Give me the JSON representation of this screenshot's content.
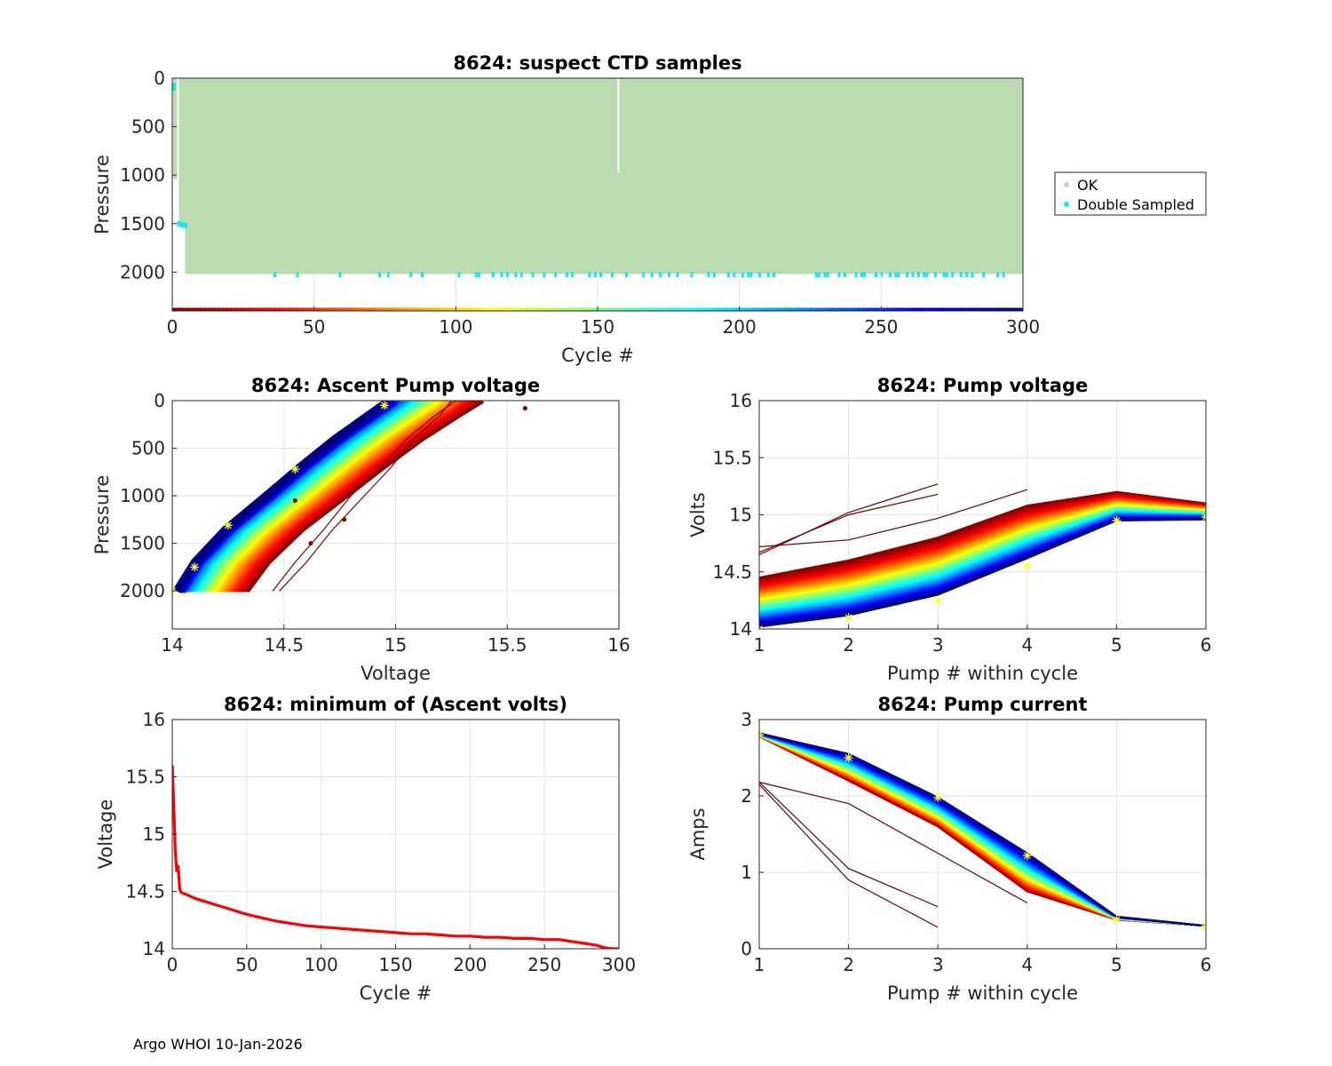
{
  "footer": "Argo WHOI 10-Jan-2026",
  "colors": {
    "ok": "#bddbb0",
    "double_sampled": "#19e6f2",
    "min_line": "#ff0000",
    "reference_marker": "#ffff33",
    "grid": "#e3e3e3",
    "axis": "#262626"
  },
  "chart_data": [
    {
      "id": "ctd",
      "type": "scatter",
      "title": "8624: suspect CTD samples",
      "xlabel": "Cycle #",
      "ylabel": "Pressure",
      "xlim": [
        0,
        300
      ],
      "ylim": [
        2400,
        0
      ],
      "xticks": [
        0,
        50,
        100,
        150,
        200,
        250,
        300
      ],
      "yticks": [
        0,
        500,
        1000,
        1500,
        2000
      ],
      "legend": {
        "position": "outside-right",
        "entries": [
          "OK",
          "Double Sampled"
        ]
      },
      "ok_region": {
        "cycle_range": [
          0,
          300
        ],
        "pressure_range": [
          0,
          2000
        ]
      },
      "early_cycles_ok": [
        {
          "cycle": 1,
          "pmax": 1050
        },
        {
          "cycle": 3,
          "pmax": 1520
        },
        {
          "cycle": 4,
          "pmax": 1520
        }
      ],
      "gap_cycle": {
        "cycle": 157,
        "pressure_range": [
          0,
          980
        ]
      },
      "double_sampled_near_surface": [
        {
          "cycle": 0,
          "pressure": 80
        },
        {
          "cycle": 0,
          "pressure": 100
        }
      ],
      "double_sampled_1500": [
        {
          "cycle": 2,
          "pressure": 1500
        },
        {
          "cycle": 3,
          "pressure": 1510
        },
        {
          "cycle": 4,
          "pressure": 1520
        }
      ],
      "double_sampled_deep_cycles": [
        36,
        44,
        59,
        73,
        76,
        84,
        88,
        101,
        107,
        108,
        113,
        116,
        118,
        121,
        123,
        127,
        131,
        135,
        139,
        141,
        147,
        149,
        151,
        155,
        160,
        166,
        169,
        172,
        175,
        178,
        183,
        189,
        191,
        196,
        198,
        201,
        203,
        204,
        207,
        210,
        212,
        227,
        228,
        230,
        231,
        235,
        237,
        241,
        243,
        244,
        248,
        250,
        253,
        255,
        256,
        259,
        261,
        263,
        265,
        266,
        269,
        272,
        273,
        275,
        278,
        280,
        282,
        286,
        291,
        293
      ],
      "double_sampled_deep_pressure": 2000,
      "cycle_colorbar_pressure": 2390
    },
    {
      "id": "ascent",
      "type": "line",
      "title": "8624: Ascent Pump voltage",
      "xlabel": "Voltage",
      "ylabel": "Pressure",
      "xlim": [
        14,
        16
      ],
      "ylim": [
        2400,
        0
      ],
      "xticks": [
        14,
        14.5,
        15,
        15.5,
        16
      ],
      "yticks": [
        0,
        500,
        1000,
        1500,
        2000
      ],
      "profile_pressures": [
        2000,
        1700,
        1350,
        1000,
        700,
        400,
        150,
        0
      ],
      "profile_voltages_late": [
        14.02,
        14.1,
        14.24,
        14.42,
        14.57,
        14.73,
        14.88,
        14.97
      ],
      "profile_offset_early": 0.42,
      "outliers": [
        {
          "voltage": 15.58,
          "pressure": 80
        },
        {
          "voltage": 14.77,
          "pressure": 1250
        },
        {
          "voltage": 14.62,
          "pressure": 1500
        },
        {
          "voltage": 14.55,
          "pressure": 1050
        }
      ],
      "reference_points": [
        {
          "voltage": 14.0,
          "pressure": 2000
        },
        {
          "voltage": 14.1,
          "pressure": 1750
        },
        {
          "voltage": 14.25,
          "pressure": 1310
        },
        {
          "voltage": 14.55,
          "pressure": 720
        },
        {
          "voltage": 14.95,
          "pressure": 50
        }
      ]
    },
    {
      "id": "pumpv",
      "type": "line",
      "title": "8624: Pump voltage",
      "xlabel": "Pump # within cycle",
      "ylabel": "Volts",
      "xlim": [
        1,
        6
      ],
      "ylim": [
        14,
        16
      ],
      "xticks": [
        1,
        2,
        3,
        4,
        5,
        6
      ],
      "yticks": [
        14,
        14.5,
        15,
        15.5,
        16
      ],
      "series_first_cycle": [
        14.45,
        14.6,
        14.8,
        15.08,
        15.2,
        15.1
      ],
      "series_last_cycle": [
        14.02,
        14.12,
        14.3,
        14.62,
        14.95,
        14.96
      ],
      "outlier_series": [
        [
          14.65,
          15.02,
          15.27
        ],
        [
          14.67,
          15.0,
          15.18
        ],
        [
          14.72,
          14.78,
          14.97,
          15.22
        ]
      ],
      "reference_points": [
        {
          "x": 1,
          "y": 14.0
        },
        {
          "x": 2,
          "y": 14.1
        },
        {
          "x": 3,
          "y": 14.25
        },
        {
          "x": 4,
          "y": 14.55
        },
        {
          "x": 5,
          "y": 14.95
        },
        {
          "x": 6,
          "y": 14.98
        }
      ]
    },
    {
      "id": "minv",
      "type": "line",
      "title": "8624: minimum of (Ascent volts)",
      "xlabel": "Cycle #",
      "ylabel": "Voltage",
      "xlim": [
        0,
        300
      ],
      "ylim": [
        14,
        16
      ],
      "xticks": [
        0,
        50,
        100,
        150,
        200,
        250,
        300
      ],
      "yticks": [
        14,
        14.5,
        15,
        15.5,
        16
      ],
      "x": [
        0,
        1,
        2,
        3,
        4,
        5,
        6,
        8,
        10,
        15,
        20,
        30,
        40,
        50,
        60,
        70,
        80,
        90,
        100,
        110,
        120,
        130,
        140,
        150,
        160,
        170,
        180,
        190,
        200,
        210,
        220,
        230,
        240,
        250,
        255,
        260,
        265,
        270,
        275,
        280,
        285,
        290,
        295,
        300
      ],
      "values": [
        15.6,
        15.25,
        14.85,
        14.68,
        14.72,
        14.52,
        14.49,
        14.48,
        14.47,
        14.44,
        14.42,
        14.38,
        14.34,
        14.3,
        14.27,
        14.24,
        14.22,
        14.2,
        14.19,
        14.18,
        14.17,
        14.16,
        14.15,
        14.14,
        14.13,
        14.13,
        14.12,
        14.11,
        14.11,
        14.1,
        14.1,
        14.09,
        14.09,
        14.08,
        14.08,
        14.08,
        14.07,
        14.06,
        14.05,
        14.04,
        14.03,
        14.01,
        14.0,
        14.0
      ]
    },
    {
      "id": "pumpc",
      "type": "line",
      "title": "8624: Pump current",
      "xlabel": "Pump # within cycle",
      "ylabel": "Amps",
      "xlim": [
        1,
        6
      ],
      "ylim": [
        0,
        3
      ],
      "xticks": [
        1,
        2,
        3,
        4,
        5,
        6
      ],
      "yticks": [
        0,
        1,
        2,
        3
      ],
      "series_first_cycle": [
        2.78,
        2.2,
        1.6,
        0.75,
        0.38,
        0.3
      ],
      "series_last_cycle": [
        2.82,
        2.55,
        1.98,
        1.25,
        0.42,
        0.3
      ],
      "outlier_series": [
        [
          2.18,
          1.05,
          0.55
        ],
        [
          2.15,
          0.9,
          0.28
        ],
        [
          2.18,
          1.9,
          1.25,
          0.6
        ]
      ],
      "reference_points": [
        {
          "x": 1,
          "y": 2.8
        },
        {
          "x": 2,
          "y": 2.5
        },
        {
          "x": 3,
          "y": 1.98
        },
        {
          "x": 4,
          "y": 1.22
        },
        {
          "x": 5,
          "y": 0.38
        },
        {
          "x": 6,
          "y": 0.3
        }
      ]
    }
  ]
}
